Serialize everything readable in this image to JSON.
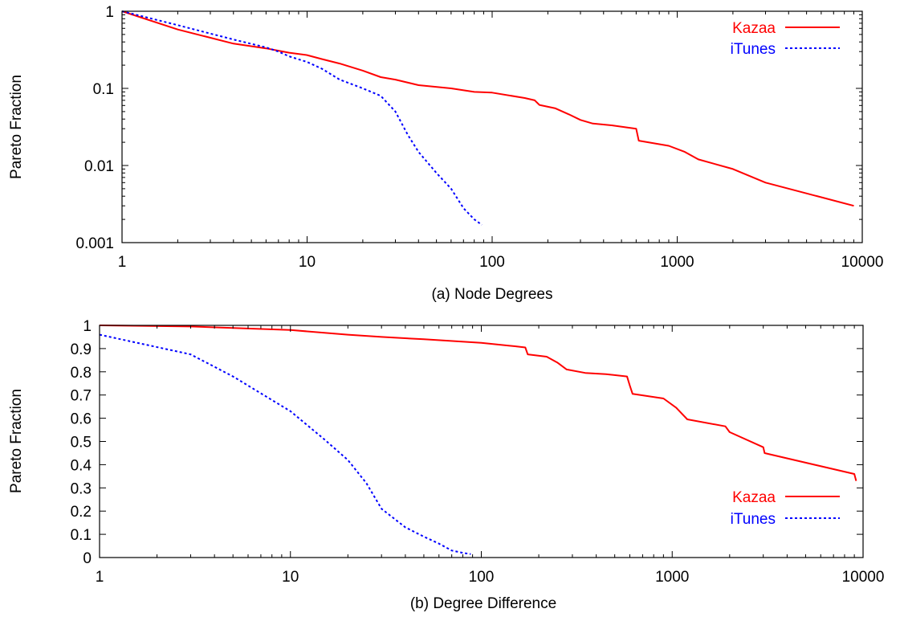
{
  "chart_data": [
    {
      "type": "line",
      "caption": "(a)  Node Degrees",
      "xlabel": "",
      "ylabel": "Pareto Fraction",
      "xscale": "log",
      "yscale": "log",
      "xlim": [
        1,
        10000
      ],
      "ylim": [
        0.001,
        1
      ],
      "xticks": [
        1,
        10,
        100,
        1000,
        10000
      ],
      "xtick_labels": [
        "1",
        "10",
        "100",
        "1000",
        "10000"
      ],
      "yticks": [
        0.001,
        0.01,
        0.1,
        1
      ],
      "ytick_labels": [
        "0.001",
        "0.01",
        "0.1",
        "1"
      ],
      "grid": false,
      "legend": "top-right",
      "series": [
        {
          "name": "Kazaa",
          "color": "#ff0000",
          "dash": "solid",
          "points": [
            [
              1,
              1
            ],
            [
              2,
              0.58
            ],
            [
              4,
              0.38
            ],
            [
              6,
              0.33
            ],
            [
              8,
              0.29
            ],
            [
              10,
              0.27
            ],
            [
              12,
              0.24
            ],
            [
              15,
              0.21
            ],
            [
              20,
              0.17
            ],
            [
              25,
              0.14
            ],
            [
              30,
              0.13
            ],
            [
              40,
              0.11
            ],
            [
              60,
              0.1
            ],
            [
              80,
              0.09
            ],
            [
              100,
              0.088
            ],
            [
              150,
              0.075
            ],
            [
              170,
              0.07
            ],
            [
              180,
              0.061
            ],
            [
              220,
              0.055
            ],
            [
              260,
              0.046
            ],
            [
              300,
              0.039
            ],
            [
              350,
              0.035
            ],
            [
              450,
              0.033
            ],
            [
              600,
              0.03
            ],
            [
              620,
              0.021
            ],
            [
              900,
              0.018
            ],
            [
              1100,
              0.015
            ],
            [
              1300,
              0.012
            ],
            [
              2000,
              0.009
            ],
            [
              3000,
              0.006
            ],
            [
              9000,
              0.003
            ]
          ]
        },
        {
          "name": "iTunes",
          "color": "#0000ff",
          "dash": "dotted",
          "points": [
            [
              1,
              1
            ],
            [
              2,
              0.66
            ],
            [
              4,
              0.43
            ],
            [
              6,
              0.34
            ],
            [
              7,
              0.3
            ],
            [
              8,
              0.26
            ],
            [
              10,
              0.22
            ],
            [
              12,
              0.18
            ],
            [
              15,
              0.13
            ],
            [
              20,
              0.1
            ],
            [
              25,
              0.08
            ],
            [
              30,
              0.05
            ],
            [
              35,
              0.025
            ],
            [
              40,
              0.015
            ],
            [
              50,
              0.008
            ],
            [
              60,
              0.005
            ],
            [
              70,
              0.0028
            ],
            [
              80,
              0.002
            ],
            [
              88,
              0.0017
            ]
          ]
        }
      ]
    },
    {
      "type": "line",
      "caption": "(b)  Degree Difference",
      "xlabel": "",
      "ylabel": "Pareto Fraction",
      "xscale": "log",
      "yscale": "linear",
      "xlim": [
        1,
        10000
      ],
      "ylim": [
        0,
        1
      ],
      "xticks": [
        1,
        10,
        100,
        1000,
        10000
      ],
      "xtick_labels": [
        "1",
        "10",
        "100",
        "1000",
        "10000"
      ],
      "yticks": [
        0,
        0.1,
        0.2,
        0.3,
        0.4,
        0.5,
        0.6,
        0.7,
        0.8,
        0.9,
        1
      ],
      "ytick_labels": [
        "0",
        "0.1",
        "0.2",
        "0.3",
        "0.4",
        "0.5",
        "0.6",
        "0.7",
        "0.8",
        "0.9",
        "1"
      ],
      "grid": false,
      "legend": "bottom-right",
      "series": [
        {
          "name": "Kazaa",
          "color": "#ff0000",
          "dash": "solid",
          "points": [
            [
              1,
              1
            ],
            [
              3,
              0.995
            ],
            [
              10,
              0.98
            ],
            [
              20,
              0.96
            ],
            [
              30,
              0.95
            ],
            [
              50,
              0.94
            ],
            [
              100,
              0.925
            ],
            [
              150,
              0.91
            ],
            [
              170,
              0.905
            ],
            [
              175,
              0.875
            ],
            [
              220,
              0.865
            ],
            [
              250,
              0.84
            ],
            [
              280,
              0.81
            ],
            [
              350,
              0.795
            ],
            [
              450,
              0.79
            ],
            [
              580,
              0.78
            ],
            [
              600,
              0.74
            ],
            [
              620,
              0.705
            ],
            [
              900,
              0.685
            ],
            [
              1050,
              0.645
            ],
            [
              1200,
              0.595
            ],
            [
              1900,
              0.565
            ],
            [
              2000,
              0.54
            ],
            [
              3000,
              0.475
            ],
            [
              3050,
              0.45
            ],
            [
              9000,
              0.36
            ],
            [
              9200,
              0.33
            ]
          ]
        },
        {
          "name": "iTunes",
          "color": "#0000ff",
          "dash": "dotted",
          "points": [
            [
              1,
              0.96
            ],
            [
              3,
              0.875
            ],
            [
              5,
              0.78
            ],
            [
              10,
              0.63
            ],
            [
              15,
              0.51
            ],
            [
              20,
              0.42
            ],
            [
              25,
              0.32
            ],
            [
              30,
              0.21
            ],
            [
              40,
              0.13
            ],
            [
              50,
              0.09
            ],
            [
              60,
              0.06
            ],
            [
              70,
              0.03
            ],
            [
              80,
              0.02
            ],
            [
              88,
              0.015
            ]
          ]
        }
      ]
    }
  ]
}
